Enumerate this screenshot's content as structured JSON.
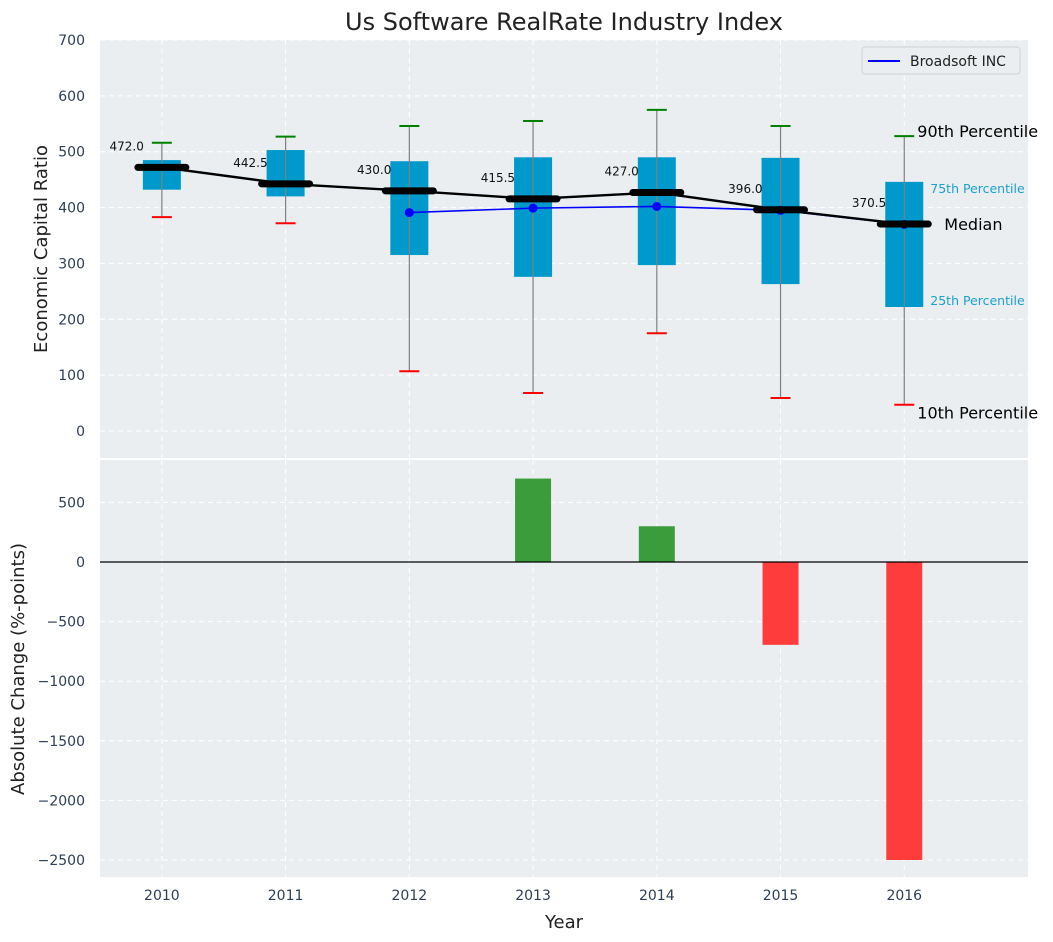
{
  "chart_data": [
    {
      "type": "box",
      "title": "Us Software RealRate Industry Index",
      "xlabel": "",
      "ylabel": "Economic Capital Ratio",
      "ylim": [
        -50,
        700
      ],
      "yticks": [
        "0",
        "100",
        "200",
        "300",
        "400",
        "500",
        "600",
        "700"
      ],
      "ytick_values": [
        0,
        100,
        200,
        300,
        400,
        500,
        600,
        700
      ],
      "grid": true,
      "categories": [
        "2010",
        "2011",
        "2012",
        "2013",
        "2014",
        "2015",
        "2016"
      ],
      "boxes": [
        {
          "year": "2010",
          "p10": 383,
          "p25": 432,
          "median": 472.0,
          "p75": 485,
          "p90": 516
        },
        {
          "year": "2011",
          "p10": 372,
          "p25": 420,
          "median": 442.5,
          "p75": 503,
          "p90": 527
        },
        {
          "year": "2012",
          "p10": 107,
          "p25": 315,
          "median": 430.0,
          "p75": 483,
          "p90": 546
        },
        {
          "year": "2013",
          "p10": 68,
          "p25": 276,
          "median": 415.5,
          "p75": 490,
          "p90": 555
        },
        {
          "year": "2014",
          "p10": 175,
          "p25": 297,
          "median": 427.0,
          "p75": 490,
          "p90": 575
        },
        {
          "year": "2015",
          "p10": 59,
          "p25": 263,
          "median": 396.0,
          "p75": 489,
          "p90": 546
        },
        {
          "year": "2016",
          "p10": 47,
          "p25": 222,
          "median": 370.5,
          "p75": 446,
          "p90": 528
        }
      ],
      "median_labels": [
        "472.0",
        "442.5",
        "430.0",
        "415.5",
        "427.0",
        "396.0",
        "370.5"
      ],
      "series": [
        {
          "name": "Broadsoft INC",
          "color": "#0000ff",
          "x": [
            "2012",
            "2013",
            "2014",
            "2015",
            "2016"
          ],
          "values": [
            391,
            399,
            402,
            395,
            370
          ]
        }
      ],
      "legend": {
        "position": "top-right",
        "entries": [
          "Broadsoft INC"
        ]
      },
      "annotations": {
        "p90": "90th Percentile",
        "p75": "75th Percentile",
        "median": "Median",
        "p25": "25th Percentile",
        "p10": "10th Percentile"
      },
      "colors": {
        "box": "#0099cc",
        "median": "#000000",
        "p90_cap": "#008000",
        "p10_cap": "#ff0000",
        "whisker": "#808080",
        "background": "#eaeef0"
      }
    },
    {
      "type": "bar",
      "xlabel": "Year",
      "ylabel": "Absolute Change (%-points)",
      "ylim": [
        -2650,
        880
      ],
      "yticks": [
        "500",
        "0",
        "−500",
        "−1000",
        "−1500",
        "−2000",
        "−2500"
      ],
      "ytick_values": [
        500,
        0,
        -500,
        -1000,
        -1500,
        -2000,
        -2500
      ],
      "categories": [
        "2010",
        "2011",
        "2012",
        "2013",
        "2014",
        "2015",
        "2016"
      ],
      "values": [
        0,
        0,
        0,
        700,
        300,
        -695,
        -2500
      ],
      "colors": {
        "positive": "#3a9c3a",
        "negative": "#ff3c3c"
      },
      "grid": true
    }
  ]
}
